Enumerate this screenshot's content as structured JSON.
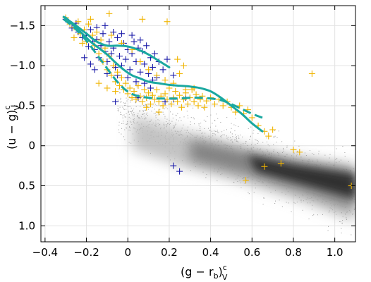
{
  "chart_data": {
    "type": "scatter",
    "title": "",
    "xlabel": {
      "main": "(g − r",
      "sub1": "b",
      "close": ")",
      "sup": "c",
      "sub2": "V"
    },
    "ylabel": {
      "main": "(u − g)",
      "sup": "c",
      "sub": "V"
    },
    "xlim": [
      -0.42,
      1.1
    ],
    "ylim": [
      -1.75,
      1.2
    ],
    "y_inverted": true,
    "grid": true,
    "legend": "none",
    "x_ticks": [
      {
        "value": -0.4,
        "label": "−0.4"
      },
      {
        "value": -0.2,
        "label": "−0.2"
      },
      {
        "value": 0,
        "label": "0"
      },
      {
        "value": 0.2,
        "label": "0.2"
      },
      {
        "value": 0.4,
        "label": "0.4"
      },
      {
        "value": 0.6,
        "label": "0.6"
      },
      {
        "value": 0.8,
        "label": "0.8"
      },
      {
        "value": 1.0,
        "label": "1.0"
      }
    ],
    "y_ticks": [
      {
        "value": -1.5,
        "label": "−1.5"
      },
      {
        "value": -1.0,
        "label": "−1.0"
      },
      {
        "value": -0.5,
        "label": "−0.5"
      },
      {
        "value": 0,
        "label": "0"
      },
      {
        "value": 0.5,
        "label": "0.5"
      },
      {
        "value": 1.0,
        "label": "1.0"
      }
    ],
    "colors": {
      "blue_points": "#1a1aa8",
      "gold_points": "#f0b400",
      "curves": "#1aa8a0",
      "background_density": "#555555"
    },
    "series": [
      {
        "marker": "plus",
        "color": "#1a1aa8",
        "points": [
          [
            -0.3,
            -1.58
          ],
          [
            -0.27,
            -1.47
          ],
          [
            -0.25,
            -1.53
          ],
          [
            -0.24,
            -1.42
          ],
          [
            -0.22,
            -1.35
          ],
          [
            -0.2,
            -1.38
          ],
          [
            -0.19,
            -1.24
          ],
          [
            -0.18,
            -1.45
          ],
          [
            -0.17,
            -1.3
          ],
          [
            -0.16,
            -1.2
          ],
          [
            -0.15,
            -1.33
          ],
          [
            -0.14,
            -1.1
          ],
          [
            -0.13,
            -1.25
          ],
          [
            -0.12,
            -1.4
          ],
          [
            -0.11,
            -1.18
          ],
          [
            -0.1,
            -1.05
          ],
          [
            -0.09,
            -1.3
          ],
          [
            -0.08,
            -1.15
          ],
          [
            -0.07,
            -1.22
          ],
          [
            -0.06,
            -0.98
          ],
          [
            -0.05,
            -1.35
          ],
          [
            -0.04,
            -1.12
          ],
          [
            -0.03,
            -1.0
          ],
          [
            -0.02,
            -1.28
          ],
          [
            -0.01,
            -1.08
          ],
          [
            0.0,
            -1.2
          ],
          [
            0.01,
            -0.95
          ],
          [
            0.02,
            -1.15
          ],
          [
            0.03,
            -1.3
          ],
          [
            0.04,
            -1.05
          ],
          [
            0.05,
            -1.22
          ],
          [
            0.06,
            -0.92
          ],
          [
            0.07,
            -1.18
          ],
          [
            0.08,
            -1.02
          ],
          [
            0.09,
            -1.25
          ],
          [
            0.1,
            -0.9
          ],
          [
            0.11,
            -1.1
          ],
          [
            0.12,
            -0.98
          ],
          [
            0.13,
            -1.15
          ],
          [
            0.14,
            -0.85
          ],
          [
            0.15,
            -1.05
          ],
          [
            0.17,
            -0.95
          ],
          [
            0.19,
            -1.08
          ],
          [
            0.22,
            -0.88
          ],
          [
            -0.21,
            -1.1
          ],
          [
            -0.18,
            -1.02
          ],
          [
            -0.15,
            -1.48
          ],
          [
            -0.11,
            -1.5
          ],
          [
            -0.07,
            -1.42
          ],
          [
            -0.03,
            -1.4
          ],
          [
            0.02,
            -1.38
          ],
          [
            0.06,
            -1.32
          ],
          [
            -0.16,
            -0.95
          ],
          [
            -0.1,
            -0.9
          ],
          [
            -0.05,
            -0.88
          ],
          [
            0.0,
            -0.85
          ],
          [
            0.04,
            -0.8
          ],
          [
            0.08,
            -0.78
          ],
          [
            0.12,
            -0.82
          ],
          [
            -0.06,
            -0.55
          ],
          [
            0.05,
            -0.6
          ],
          [
            0.18,
            -0.55
          ],
          [
            0.22,
            -0.58
          ],
          [
            0.28,
            -0.6
          ],
          [
            0.11,
            -0.72
          ],
          [
            0.22,
            0.25
          ],
          [
            0.25,
            0.32
          ]
        ]
      },
      {
        "marker": "plus",
        "color": "#f0b400",
        "points": [
          [
            -0.3,
            -1.6
          ],
          [
            -0.28,
            -1.52
          ],
          [
            -0.26,
            -1.48
          ],
          [
            -0.24,
            -1.55
          ],
          [
            -0.23,
            -1.4
          ],
          [
            -0.21,
            -1.45
          ],
          [
            -0.2,
            -1.3
          ],
          [
            -0.19,
            -1.52
          ],
          [
            -0.17,
            -1.38
          ],
          [
            -0.16,
            -1.25
          ],
          [
            -0.15,
            -1.42
          ],
          [
            -0.14,
            -1.15
          ],
          [
            -0.13,
            -1.32
          ],
          [
            -0.12,
            -1.05
          ],
          [
            -0.11,
            -1.22
          ],
          [
            -0.1,
            -0.95
          ],
          [
            -0.09,
            -1.12
          ],
          [
            -0.08,
            -0.88
          ],
          [
            -0.07,
            -1.0
          ],
          [
            -0.06,
            -0.8
          ],
          [
            -0.05,
            -0.92
          ],
          [
            -0.04,
            -0.75
          ],
          [
            -0.03,
            -0.85
          ],
          [
            -0.02,
            -0.7
          ],
          [
            -0.01,
            -0.78
          ],
          [
            0.0,
            -0.65
          ],
          [
            0.01,
            -0.72
          ],
          [
            0.02,
            -0.6
          ],
          [
            0.03,
            -0.68
          ],
          [
            0.04,
            -0.58
          ],
          [
            0.05,
            -0.75
          ],
          [
            0.06,
            -0.62
          ],
          [
            0.07,
            -0.55
          ],
          [
            0.08,
            -0.7
          ],
          [
            0.09,
            -0.6
          ],
          [
            0.1,
            -0.66
          ],
          [
            0.11,
            -0.52
          ],
          [
            0.12,
            -0.63
          ],
          [
            0.13,
            -0.58
          ],
          [
            0.14,
            -0.7
          ],
          [
            0.15,
            -0.55
          ],
          [
            0.16,
            -0.62
          ],
          [
            0.17,
            -0.5
          ],
          [
            0.18,
            -0.65
          ],
          [
            0.19,
            -0.58
          ],
          [
            0.2,
            -0.72
          ],
          [
            0.21,
            -0.52
          ],
          [
            0.22,
            -0.6
          ],
          [
            0.23,
            -0.68
          ],
          [
            0.24,
            -0.55
          ],
          [
            0.25,
            -0.63
          ],
          [
            0.26,
            -0.48
          ],
          [
            0.27,
            -0.58
          ],
          [
            0.28,
            -0.66
          ],
          [
            0.29,
            -0.52
          ],
          [
            0.3,
            -0.6
          ],
          [
            0.31,
            -0.7
          ],
          [
            0.32,
            -0.55
          ],
          [
            0.33,
            -0.64
          ],
          [
            0.34,
            -0.5
          ],
          [
            0.35,
            -0.58
          ],
          [
            0.36,
            -0.62
          ],
          [
            0.37,
            -0.48
          ],
          [
            0.38,
            -0.56
          ],
          [
            0.4,
            -0.6
          ],
          [
            0.42,
            -0.52
          ],
          [
            0.44,
            -0.58
          ],
          [
            0.46,
            -0.5
          ],
          [
            0.48,
            -0.55
          ],
          [
            0.5,
            -0.48
          ],
          [
            0.52,
            -0.42
          ],
          [
            0.54,
            -0.5
          ],
          [
            0.56,
            -0.4
          ],
          [
            0.58,
            -0.45
          ],
          [
            0.6,
            -0.35
          ],
          [
            0.63,
            -0.25
          ],
          [
            0.66,
            -0.18
          ],
          [
            0.68,
            -0.12
          ],
          [
            0.7,
            -0.2
          ],
          [
            0.8,
            0.05
          ],
          [
            0.83,
            0.08
          ],
          [
            0.74,
            0.22
          ],
          [
            0.66,
            0.26
          ],
          [
            0.57,
            0.43
          ],
          [
            0.89,
            -0.9
          ],
          [
            1.08,
            0.5
          ],
          [
            -0.08,
            -1.38
          ],
          [
            -0.03,
            -1.28
          ],
          [
            0.02,
            -1.2
          ],
          [
            0.06,
            -1.05
          ],
          [
            0.1,
            -0.95
          ],
          [
            0.14,
            -0.88
          ],
          [
            0.18,
            -0.82
          ],
          [
            0.22,
            -0.78
          ],
          [
            0.25,
            -0.9
          ],
          [
            0.28,
            -0.7
          ],
          [
            0.32,
            -0.72
          ],
          [
            -0.18,
            -1.58
          ],
          [
            -0.09,
            -1.65
          ],
          [
            0.07,
            -1.58
          ],
          [
            0.19,
            -1.55
          ],
          [
            -0.26,
            -1.35
          ],
          [
            -0.22,
            -1.28
          ],
          [
            0.09,
            -0.48
          ],
          [
            0.15,
            -0.42
          ],
          [
            -0.14,
            -0.78
          ],
          [
            -0.1,
            -0.72
          ],
          [
            -0.06,
            -0.68
          ],
          [
            0.27,
            -1.0
          ],
          [
            0.24,
            -1.08
          ]
        ]
      }
    ],
    "curves": [
      {
        "style": "solid",
        "color": "#1aa8a0",
        "points": [
          [
            -0.31,
            -1.61
          ],
          [
            -0.25,
            -1.5
          ],
          [
            -0.2,
            -1.4
          ],
          [
            -0.15,
            -1.3
          ],
          [
            -0.1,
            -1.25
          ],
          [
            -0.05,
            -1.25
          ],
          [
            0.0,
            -1.24
          ],
          [
            0.05,
            -1.2
          ],
          [
            0.1,
            -1.14
          ],
          [
            0.15,
            -1.06
          ],
          [
            0.2,
            -0.98
          ]
        ]
      },
      {
        "style": "solid",
        "color": "#1aa8a0",
        "points": [
          [
            -0.3,
            -1.6
          ],
          [
            -0.26,
            -1.5
          ],
          [
            -0.22,
            -1.4
          ],
          [
            -0.18,
            -1.3
          ],
          [
            -0.14,
            -1.22
          ],
          [
            -0.1,
            -1.14
          ],
          [
            -0.06,
            -1.04
          ],
          [
            -0.02,
            -0.95
          ],
          [
            0.02,
            -0.88
          ],
          [
            0.06,
            -0.84
          ],
          [
            0.1,
            -0.8
          ],
          [
            0.15,
            -0.78
          ],
          [
            0.2,
            -0.76
          ],
          [
            0.25,
            -0.75
          ],
          [
            0.3,
            -0.74
          ],
          [
            0.35,
            -0.72
          ],
          [
            0.4,
            -0.68
          ],
          [
            0.45,
            -0.6
          ],
          [
            0.5,
            -0.5
          ],
          [
            0.55,
            -0.4
          ],
          [
            0.6,
            -0.28
          ],
          [
            0.65,
            -0.18
          ]
        ]
      },
      {
        "style": "dashed",
        "color": "#1aa8a0",
        "points": [
          [
            -0.31,
            -1.58
          ],
          [
            -0.27,
            -1.5
          ],
          [
            -0.23,
            -1.4
          ],
          [
            -0.19,
            -1.28
          ],
          [
            -0.15,
            -1.14
          ],
          [
            -0.11,
            -1.0
          ],
          [
            -0.07,
            -0.86
          ],
          [
            -0.03,
            -0.74
          ],
          [
            0.01,
            -0.66
          ],
          [
            0.05,
            -0.62
          ],
          [
            0.1,
            -0.6
          ],
          [
            0.15,
            -0.59
          ],
          [
            0.2,
            -0.59
          ],
          [
            0.25,
            -0.59
          ],
          [
            0.3,
            -0.6
          ],
          [
            0.35,
            -0.6
          ],
          [
            0.4,
            -0.59
          ],
          [
            0.45,
            -0.57
          ],
          [
            0.5,
            -0.52
          ],
          [
            0.55,
            -0.46
          ],
          [
            0.6,
            -0.4
          ],
          [
            0.65,
            -0.35
          ]
        ]
      }
    ],
    "density_band": {
      "description_points": [
        [
          0.05,
          -0.55
        ],
        [
          0.25,
          -0.3
        ],
        [
          0.6,
          -0.05
        ],
        [
          0.8,
          0.2
        ],
        [
          1.05,
          0.4
        ],
        [
          1.1,
          0.7
        ]
      ],
      "color": "#555555"
    }
  }
}
